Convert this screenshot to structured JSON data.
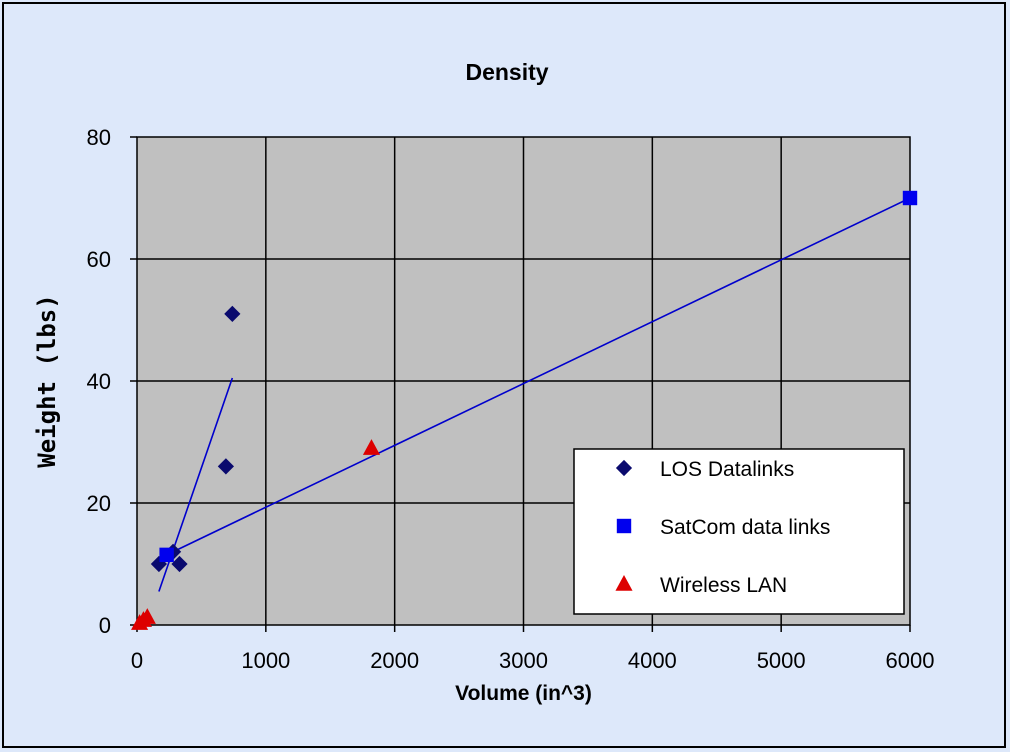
{
  "chart_data": {
    "type": "scatter",
    "title": "Density",
    "xlabel": "Volume (in^3)",
    "ylabel": "Weight (lbs)",
    "xlim": [
      0,
      6000
    ],
    "ylim": [
      0,
      80
    ],
    "x_ticks": [
      "0",
      "1000",
      "2000",
      "3000",
      "4000",
      "5000",
      "6000"
    ],
    "y_ticks": [
      "0",
      "20",
      "40",
      "60",
      "80"
    ],
    "grid": true,
    "legend_position": "bottom-right",
    "plot_background": "#c0c0c0",
    "series": [
      {
        "name": "LOS Datalinks",
        "marker": "diamond",
        "color": "#0a0a6e",
        "points": [
          [
            170,
            10
          ],
          [
            280,
            12
          ],
          [
            330,
            10
          ],
          [
            690,
            26
          ],
          [
            740,
            51
          ]
        ],
        "trendline": [
          [
            170,
            5.5
          ],
          [
            740,
            40.5
          ]
        ]
      },
      {
        "name": "SatCom data links",
        "marker": "square",
        "color": "#0000ee",
        "points": [
          [
            230,
            11.5
          ],
          [
            6000,
            70
          ]
        ],
        "trendline": [
          [
            230,
            11.5
          ],
          [
            6000,
            70
          ]
        ]
      },
      {
        "name": "Wireless LAN",
        "marker": "triangle",
        "color": "#dd0000",
        "points": [
          [
            20,
            0.3
          ],
          [
            50,
            0.8
          ],
          [
            80,
            1.3
          ],
          [
            1820,
            29
          ]
        ]
      }
    ]
  }
}
